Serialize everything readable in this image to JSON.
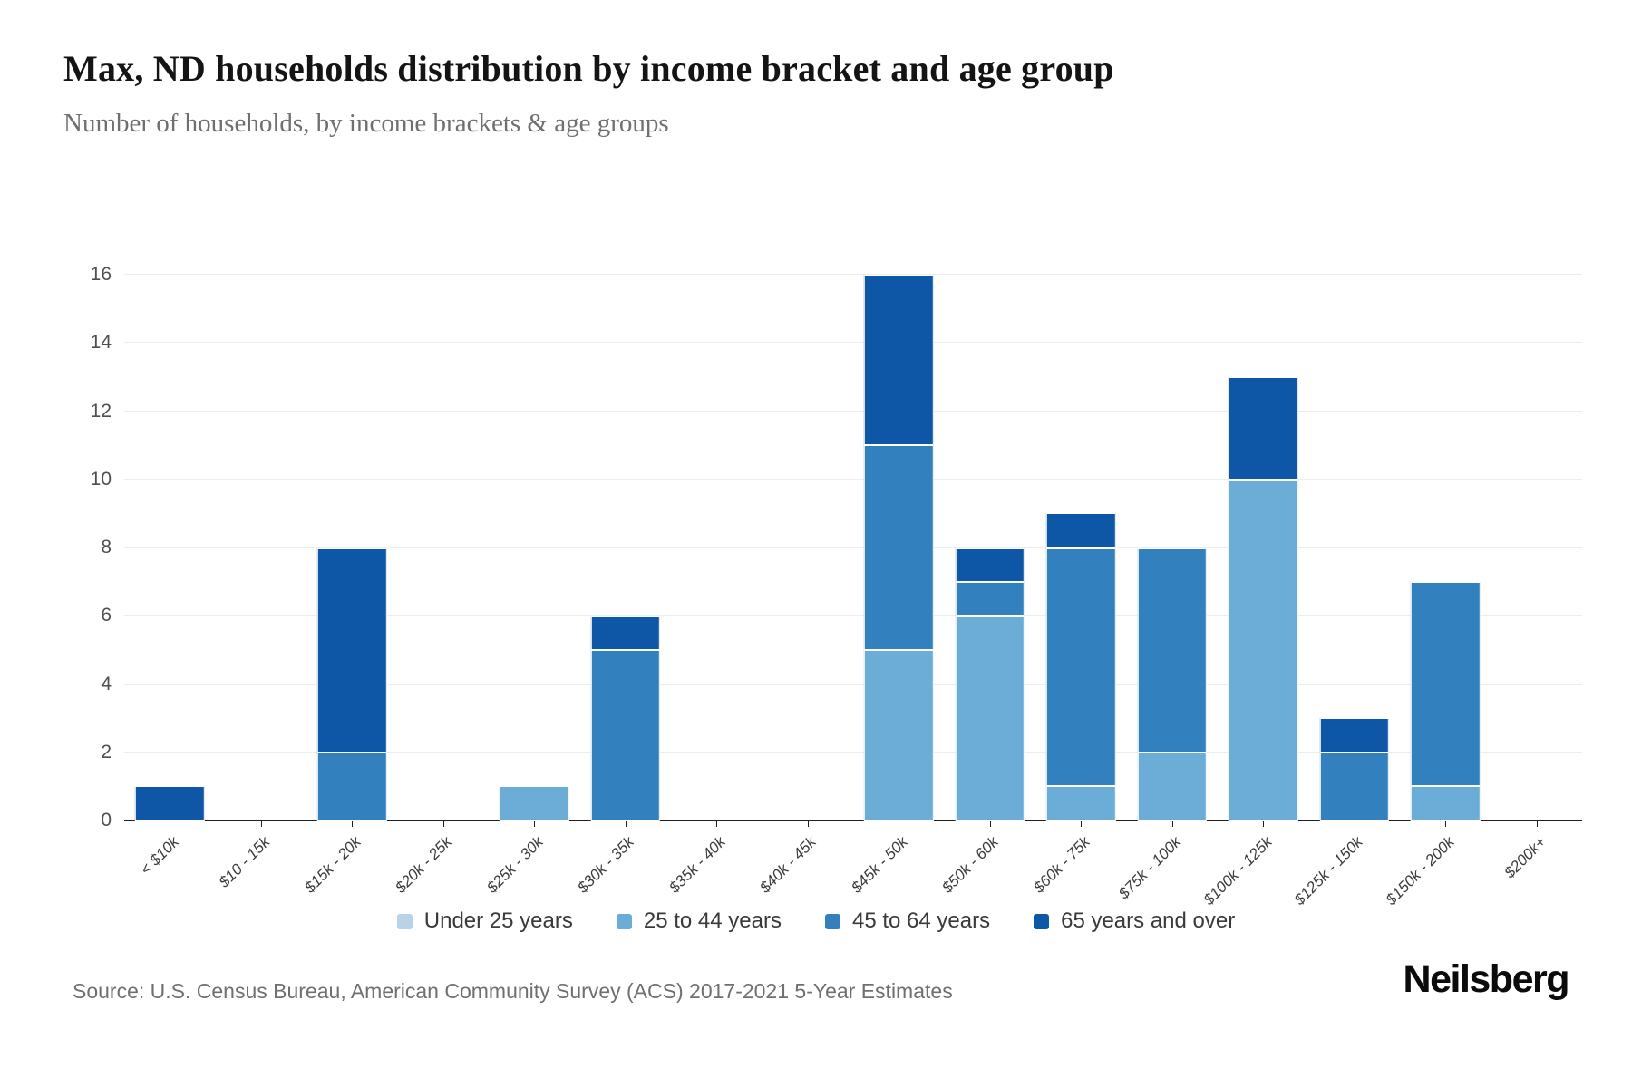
{
  "page": {
    "title": "Max, ND households distribution by income bracket and age group",
    "subtitle": "Number of households, by income brackets & age groups",
    "source": "Source: U.S. Census Bureau, American Community Survey (ACS) 2017-2021 5-Year Estimates",
    "brand": "Neilsberg"
  },
  "chart_data": {
    "type": "bar",
    "stacked": true,
    "title": "Max, ND households distribution by income bracket and age group",
    "subtitle": "Number of households, by income brackets & age groups",
    "xlabel": "",
    "ylabel": "",
    "ylim": [
      0,
      16
    ],
    "ytick_step": 2,
    "grid": true,
    "legend_position": "bottom",
    "categories": [
      "< $10k",
      "$10 - 15k",
      "$15k - 20k",
      "$20k - 25k",
      "$25k - 30k",
      "$30k - 35k",
      "$35k - 40k",
      "$40k - 45k",
      "$45k - 50k",
      "$50k - 60k",
      "$60k - 75k",
      "$75k - 100k",
      "$100k - 125k",
      "$125k - 150k",
      "$150k - 200k",
      "$200k+"
    ],
    "series": [
      {
        "name": "Under 25 years",
        "color": "#b9d3e6",
        "values": [
          0,
          0,
          0,
          0,
          0,
          0,
          0,
          0,
          0,
          0,
          0,
          0,
          0,
          0,
          0,
          0
        ]
      },
      {
        "name": "25 to 44 years",
        "color": "#6badd6",
        "values": [
          0,
          0,
          0,
          0,
          1,
          0,
          0,
          0,
          5,
          6,
          1,
          2,
          10,
          0,
          1,
          0
        ]
      },
      {
        "name": "45 to 64 years",
        "color": "#3380bf",
        "values": [
          0,
          0,
          2,
          0,
          0,
          5,
          0,
          0,
          6,
          1,
          7,
          6,
          0,
          2,
          6,
          0
        ]
      },
      {
        "name": "65 years and over",
        "color": "#0e57a6",
        "values": [
          1,
          0,
          6,
          0,
          0,
          1,
          0,
          0,
          5,
          1,
          1,
          0,
          3,
          1,
          0,
          0
        ]
      }
    ]
  }
}
